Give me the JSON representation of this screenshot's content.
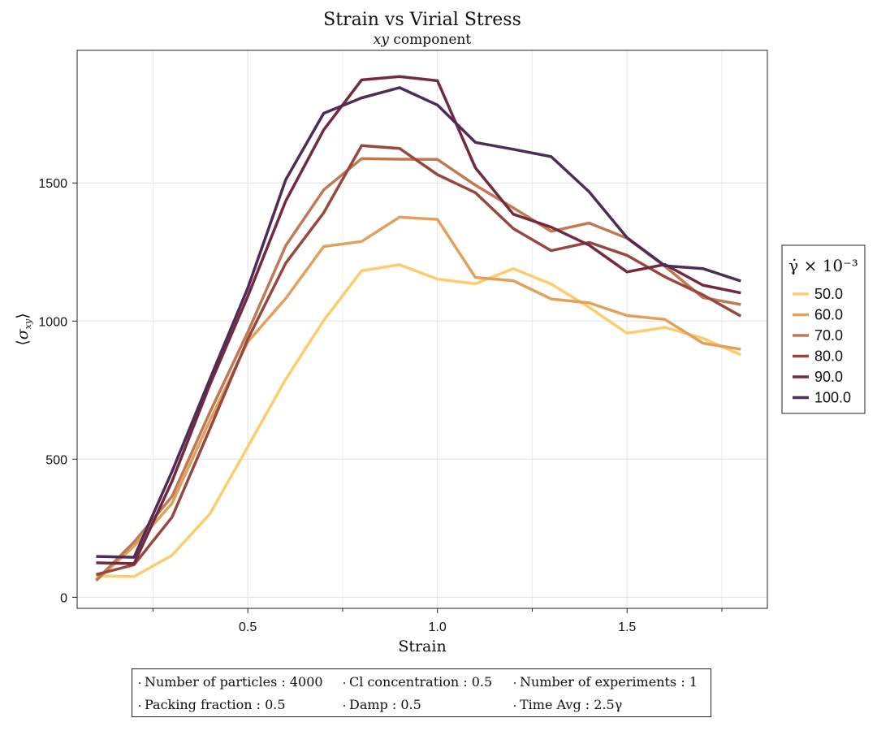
{
  "title": "Strain vs Virial Stress",
  "subtitle_var": "xy",
  "subtitle_rest": " component",
  "chart_data": {
    "type": "line",
    "title": "Strain vs Virial Stress",
    "subtitle": "xy component",
    "xlabel": "Strain",
    "ylabel": "⟨σ_xy⟩",
    "xlim": [
      0.05,
      1.87
    ],
    "ylim": [
      -40,
      1980
    ],
    "xticks": [
      0.5,
      1.0,
      1.5
    ],
    "xtick_labels": [
      "0.5",
      "1.0",
      "1.5"
    ],
    "yticks": [
      0,
      500,
      1000,
      1500
    ],
    "ytick_labels": [
      "0",
      "500",
      "1000",
      "1500"
    ],
    "grid": true,
    "legend_title": "γ̇ × 10⁻³",
    "legend_position": "right",
    "x": [
      0.1,
      0.2,
      0.3,
      0.4,
      0.5,
      0.6,
      0.7,
      0.8,
      0.9,
      1.0,
      1.1,
      1.2,
      1.3,
      1.4,
      1.5,
      1.6,
      1.7,
      1.8
    ],
    "series": [
      {
        "name": "50.0",
        "color": "#fbcd6e",
        "values": [
          78,
          75,
          152,
          302,
          545,
          790,
          1002,
          1182,
          1204,
          1152,
          1135,
          1190,
          1134,
          1050,
          956,
          977,
          938,
          878
        ]
      },
      {
        "name": "60.0",
        "color": "#e1a15c",
        "values": [
          60,
          185,
          340,
          640,
          925,
          1082,
          1270,
          1288,
          1376,
          1368,
          1158,
          1146,
          1080,
          1066,
          1020,
          1006,
          920,
          898
        ]
      },
      {
        "name": "70.0",
        "color": "#c07a52",
        "values": [
          62,
          200,
          365,
          670,
          960,
          1273,
          1475,
          1588,
          1586,
          1585,
          1492,
          1410,
          1325,
          1355,
          1300,
          1198,
          1085,
          1060
        ]
      },
      {
        "name": "80.0",
        "color": "#98473f",
        "values": [
          82,
          118,
          290,
          610,
          935,
          1210,
          1392,
          1635,
          1625,
          1530,
          1465,
          1335,
          1255,
          1285,
          1238,
          1160,
          1095,
          1018
        ]
      },
      {
        "name": "90.0",
        "color": "#722a3c",
        "values": [
          125,
          122,
          420,
          770,
          1090,
          1435,
          1692,
          1873,
          1885,
          1870,
          1555,
          1387,
          1340,
          1275,
          1178,
          1205,
          1130,
          1102
        ]
      },
      {
        "name": "100.0",
        "color": "#4f2b58",
        "values": [
          148,
          145,
          455,
          790,
          1120,
          1512,
          1752,
          1808,
          1845,
          1782,
          1647,
          1622,
          1595,
          1468,
          1302,
          1200,
          1190,
          1145
        ]
      }
    ]
  },
  "info": [
    {
      "label": "Number of particles",
      "value": "4000"
    },
    {
      "label": "Cl concentration",
      "value": "0.5"
    },
    {
      "label": "Number of experiments",
      "value": "1"
    },
    {
      "label": "Packing fraction",
      "value": "0.5"
    },
    {
      "label": "Damp",
      "value": "0.5"
    },
    {
      "label": "Time Avg",
      "value": "2.5γ"
    }
  ]
}
